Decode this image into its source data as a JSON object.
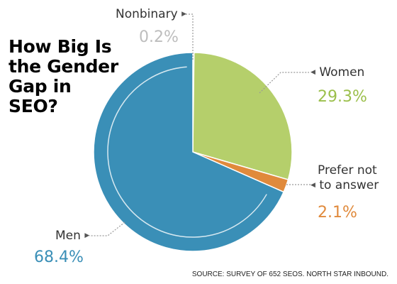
{
  "title_lines": [
    "How Big Is",
    "the Gender",
    "Gap in",
    "SEO?"
  ],
  "source": "SOURCE: SURVEY OF 652 SEOS. NORTH STAR INBOUND.",
  "chart_data": {
    "type": "pie",
    "title": "How Big Is the Gender Gap in SEO?",
    "slices": [
      {
        "key": "nonbinary",
        "label": "Nonbinary",
        "value": 0.2,
        "value_label": "0.2%",
        "color": "#c9c9c9",
        "value_color": "#bdbdbd"
      },
      {
        "key": "women",
        "label": "Women",
        "value": 29.3,
        "value_label": "29.3%",
        "color": "#b5cf6b",
        "value_color": "#9bbf4b"
      },
      {
        "key": "prefer",
        "label_lines": [
          "Prefer not",
          "to answer"
        ],
        "value": 2.1,
        "value_label": "2.1%",
        "color": "#e08a3c",
        "value_color": "#e08a3c"
      },
      {
        "key": "men",
        "label": "Men",
        "value": 68.4,
        "value_label": "68.4%",
        "color": "#3a8fb7",
        "value_color": "#3a8fb7"
      }
    ],
    "start": "12 o'clock",
    "direction": "clockwise",
    "legend": "none",
    "leader_lines": "dotted"
  }
}
